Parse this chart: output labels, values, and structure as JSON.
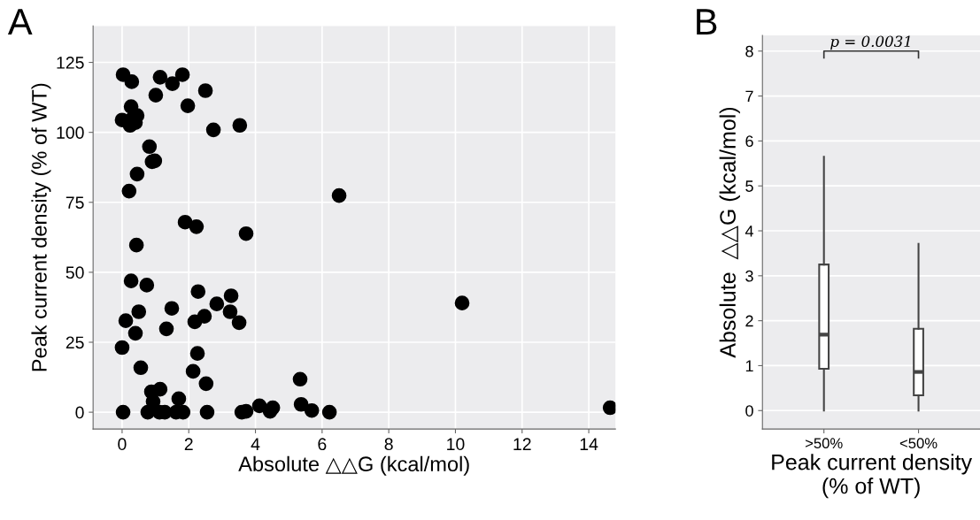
{
  "chart_data": [
    {
      "type": "scatter",
      "title": "A",
      "xlabel": "Absolute △△G (kcal/mol)",
      "ylabel": "Peak current density (% of WT)",
      "x": [
        0.03,
        0.29,
        1.14,
        1.81,
        1.51,
        2.5,
        1.01,
        1.97,
        0.27,
        0.45,
        0.0,
        0.24,
        0.4,
        0.32,
        2.74,
        3.53,
        0.82,
        0.9,
        0.98,
        0.45,
        0.21,
        6.51,
        1.89,
        2.23,
        3.72,
        0.43,
        0.27,
        0.74,
        2.28,
        3.27,
        2.84,
        10.2,
        1.49,
        0.5,
        3.24,
        2.47,
        2.18,
        0.11,
        3.51,
        1.33,
        0.4,
        0.0,
        2.26,
        0.56,
        2.13,
        2.52,
        5.34,
        1.14,
        0.88,
        1.7,
        0.93,
        0.03,
        0.77,
        1.12,
        1.28,
        1.62,
        1.83,
        2.55,
        3.59,
        3.72,
        4.12,
        4.44,
        4.52,
        5.37,
        5.69,
        6.22,
        14.64
      ],
      "series": [
        {
          "color": "#000000",
          "values": [
            120.6,
            118.1,
            119.7,
            120.6,
            117.4,
            114.9,
            113.3,
            109.5,
            109.2,
            106.0,
            104.4,
            102.5,
            103.5,
            105.1,
            100.9,
            102.5,
            94.9,
            89.5,
            89.8,
            85.1,
            79.0,
            77.4,
            67.9,
            66.3,
            63.8,
            59.7,
            46.9,
            45.4,
            43.1,
            41.6,
            38.7,
            39.0,
            37.1,
            35.9,
            35.9,
            34.3,
            32.3,
            32.7,
            32.0,
            29.8,
            28.2,
            23.1,
            21.0,
            15.9,
            14.6,
            10.2,
            11.8,
            8.2,
            7.3,
            4.8,
            3.8,
            0,
            0,
            0,
            0,
            0,
            0,
            0,
            0,
            0.3,
            2.3,
            0.3,
            1.6,
            2.8,
            0.6,
            0,
            1.6
          ]
        }
      ],
      "xlim": [
        -0.87,
        14.8
      ],
      "ylim": [
        -6,
        138
      ],
      "xticks": [
        0,
        2,
        4,
        6,
        8,
        10,
        12,
        14
      ],
      "yticks": [
        0,
        25,
        50,
        75,
        100,
        125
      ],
      "grid": true,
      "marker": "circle"
    },
    {
      "type": "box",
      "title": "B",
      "xlabel": "Peak current density\n(% of WT)",
      "ylabel": "Absolute  △△G (kcal/mol)",
      "categories": [
        ">50%",
        "<50%"
      ],
      "boxes": [
        {
          "low": 0,
          "q1": 0.93,
          "median": 1.69,
          "q3": 3.25,
          "high": 5.65
        },
        {
          "low": 0,
          "q1": 0.34,
          "median": 0.86,
          "q3": 1.82,
          "high": 3.71
        }
      ],
      "ylim": [
        -0.41,
        8.35
      ],
      "yticks": [
        0,
        1,
        2,
        3,
        4,
        5,
        6,
        7,
        8
      ],
      "grid": "y",
      "annotations": [
        "p = 0.0031"
      ]
    }
  ]
}
